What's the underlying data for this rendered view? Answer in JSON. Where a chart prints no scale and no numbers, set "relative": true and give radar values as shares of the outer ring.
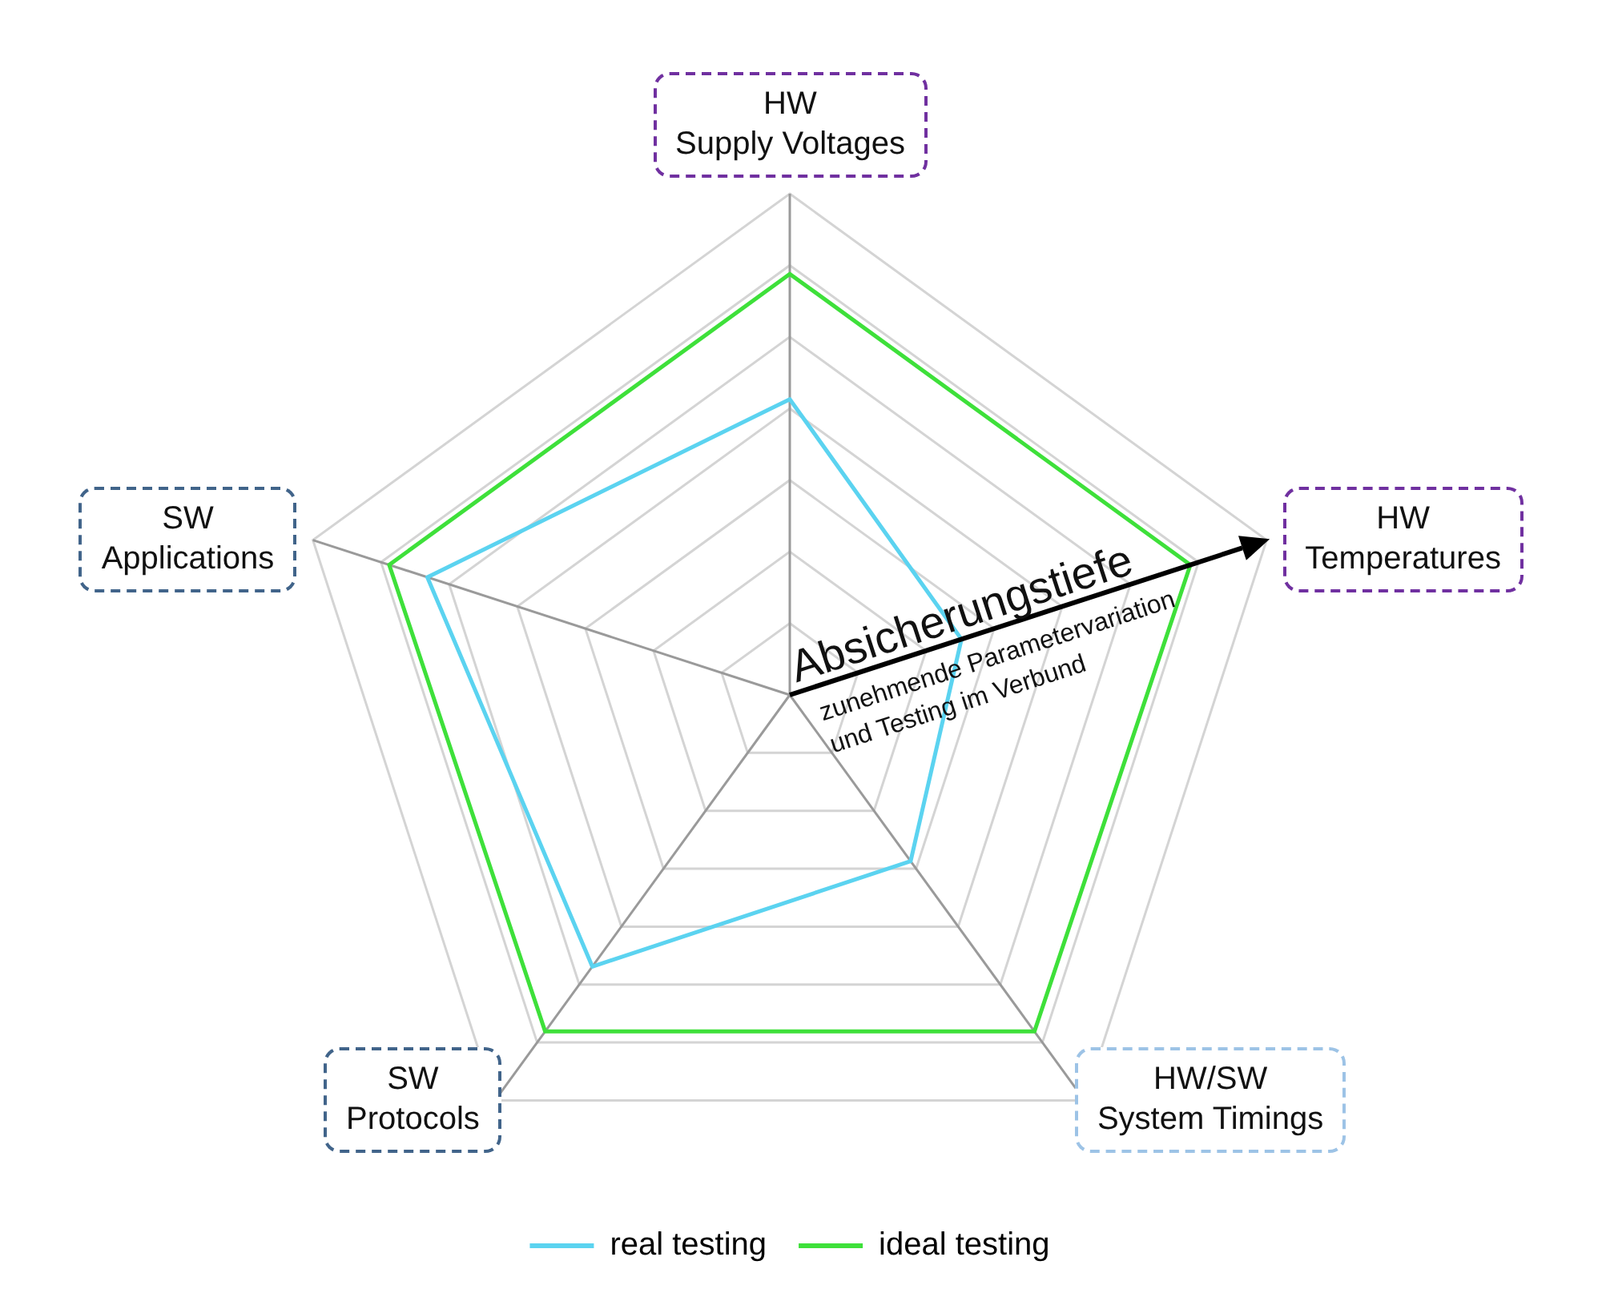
{
  "chart_data": {
    "type": "radar",
    "relative": true,
    "grid": true,
    "legend": "bottom",
    "marker": "none",
    "line_style": "solid",
    "categories": [
      "HW\nSupply Voltages",
      "HW\nTemperatures",
      "HW/SW\nSystem Timings",
      "SW\nProtocols",
      "SW\nApplications"
    ],
    "series": [
      {
        "name": "real testing",
        "color": "#5bd3f0",
        "values": [
          0.59,
          0.36,
          0.41,
          0.67,
          0.76
        ]
      },
      {
        "name": "ideal testing",
        "color": "#3ee03a",
        "values": [
          0.84,
          0.84,
          0.83,
          0.83,
          0.84
        ]
      }
    ],
    "annotations": [
      "Absicherungstiefe",
      "zunehmende Parametervariation\nund Testing im Verbund"
    ]
  }
}
